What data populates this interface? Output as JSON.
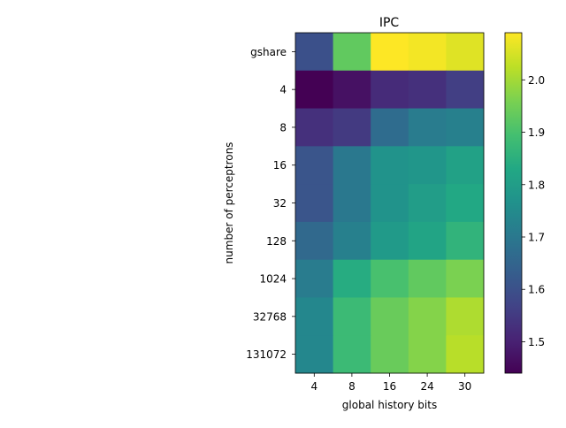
{
  "chart_data": {
    "type": "heatmap",
    "title": "IPC",
    "xlabel": "global history bits",
    "ylabel": "number of perceptrons",
    "x_categories": [
      "4",
      "8",
      "16",
      "24",
      "30"
    ],
    "y_categories": [
      "gshare",
      "4",
      "8",
      "16",
      "32",
      "128",
      "1024",
      "32768",
      "131072"
    ],
    "values": [
      [
        1.6,
        1.93,
        2.09,
        2.08,
        2.06
      ],
      [
        1.44,
        1.47,
        1.52,
        1.53,
        1.56
      ],
      [
        1.53,
        1.55,
        1.67,
        1.71,
        1.72
      ],
      [
        1.61,
        1.7,
        1.77,
        1.78,
        1.81
      ],
      [
        1.61,
        1.7,
        1.77,
        1.8,
        1.83
      ],
      [
        1.66,
        1.72,
        1.79,
        1.82,
        1.86
      ],
      [
        1.71,
        1.84,
        1.9,
        1.93,
        1.96
      ],
      [
        1.74,
        1.88,
        1.94,
        1.97,
        2.01
      ],
      [
        1.74,
        1.88,
        1.94,
        1.97,
        2.02
      ]
    ],
    "colormap": "viridis",
    "vmin": 1.44,
    "vmax": 2.09,
    "colorbar_ticks": [
      "1.5",
      "1.6",
      "1.7",
      "1.8",
      "1.9",
      "2.0"
    ],
    "colorbar_tick_values": [
      1.5,
      1.6,
      1.7,
      1.8,
      1.9,
      2.0
    ],
    "grid": false
  }
}
